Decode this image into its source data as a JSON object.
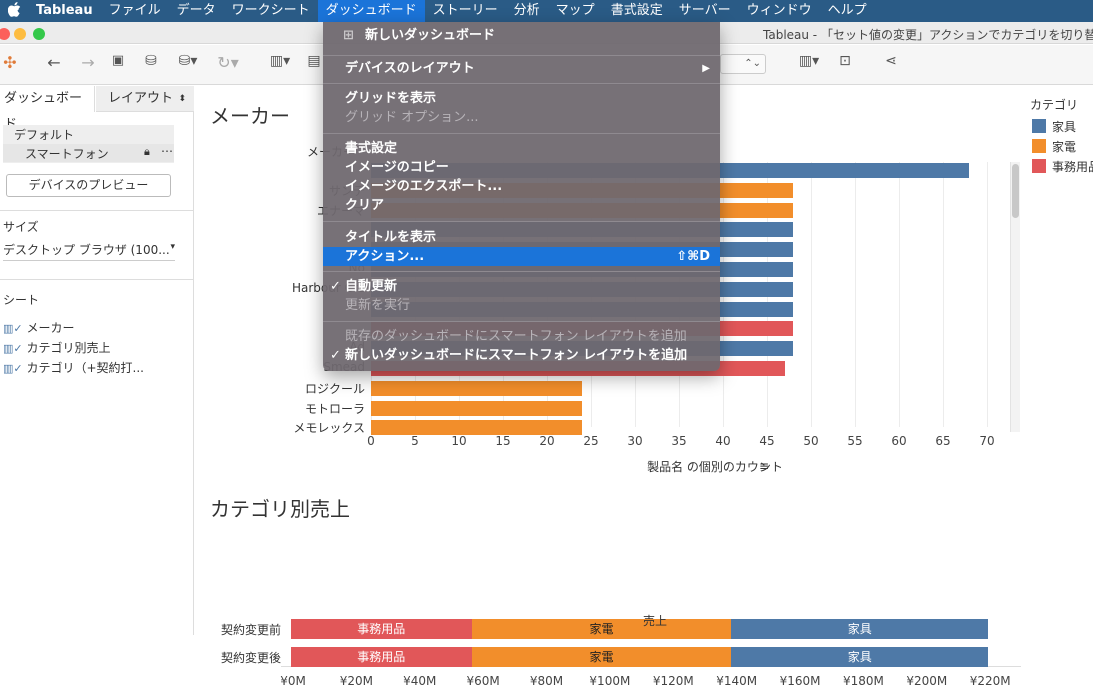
{
  "menubar": {
    "apple_icon": "apple-icon",
    "items": [
      "Tableau",
      "ファイル",
      "データ",
      "ワークシート",
      "ダッシュボード",
      "ストーリー",
      "分析",
      "マップ",
      "書式設定",
      "サーバー",
      "ウィンドウ",
      "ヘルプ"
    ]
  },
  "window": {
    "title": "Tableau - 「セット値の変更」アクションでカテゴリを切り替"
  },
  "sidebar": {
    "tabs": [
      "ダッシュボード",
      "レイアウト"
    ],
    "layout_default": "デフォルト",
    "layout_phone": "スマートフォン",
    "preview_button": "デバイスのプレビュー",
    "size_heading": "サイズ",
    "size_value": "デスクトップ ブラウザ (100...",
    "sheets_heading": "シート",
    "sheets": [
      "メーカー",
      "カテゴリ別売上",
      "カテゴリ（+契約打..."
    ]
  },
  "dropdown_menu": {
    "items": [
      {
        "label": "新しいダッシュボード",
        "disabled": false
      },
      {
        "label": "デバイスのレイアウト",
        "disabled": false,
        "submenu": true
      },
      {
        "label": "グリッドを表示",
        "disabled": false
      },
      {
        "label": "グリッド オプション...",
        "disabled": true
      },
      {
        "label": "書式設定",
        "disabled": false
      },
      {
        "label": "イメージのコピー",
        "disabled": false
      },
      {
        "label": "イメージのエクスポート...",
        "disabled": false
      },
      {
        "label": "クリア",
        "disabled": false
      },
      {
        "label": "タイトルを表示",
        "disabled": false
      },
      {
        "label": "アクション...",
        "disabled": false,
        "highlighted": true,
        "shortcut": "⇧⌘D"
      },
      {
        "label": "自動更新",
        "disabled": false,
        "checked": true
      },
      {
        "label": "更新を実行",
        "disabled": true
      },
      {
        "label": "既存のダッシュボードにスマートフォン レイアウトを追加",
        "disabled": true
      },
      {
        "label": "新しいダッシュボードにスマートフォン レイアウトを追加",
        "disabled": false,
        "checked": true
      }
    ]
  },
  "legend": {
    "title": "カテゴリ",
    "items": [
      {
        "label": "家具",
        "color": "#4e79a7"
      },
      {
        "label": "家電",
        "color": "#f28e2b"
      },
      {
        "label": "事務用品",
        "color": "#e15759"
      }
    ]
  },
  "chart_data": [
    {
      "type": "bar",
      "title": "メーカー",
      "xlabel": "製品名 の個別のカウント",
      "ylabel": "メーカー",
      "xlim": [
        0,
        70
      ],
      "x_ticks": [
        0,
        5,
        10,
        15,
        20,
        25,
        30,
        35,
        40,
        45,
        50,
        55,
        60,
        65,
        70
      ],
      "categories": [
        "",
        "サンデ",
        "エナーマ",
        "",
        "",
        "No",
        "Harbour Cre",
        "",
        "",
        "Ad",
        "Smead",
        "ロジクール",
        "モトローラ",
        "メモレックス"
      ],
      "values": [
        68,
        48,
        48,
        48,
        48,
        48,
        48,
        48,
        48,
        48,
        47,
        24,
        24,
        24
      ],
      "colors": [
        "#4e79a7",
        "#f28e2b",
        "#f28e2b",
        "#4e79a7",
        "#4e79a7",
        "#4e79a7",
        "#4e79a7",
        "#4e79a7",
        "#e15759",
        "#4e79a7",
        "#e15759",
        "#f28e2b",
        "#f28e2b",
        "#f28e2b"
      ]
    },
    {
      "type": "bar",
      "stacked": true,
      "title": "カテゴリ別売上",
      "xlabel": "売上",
      "xlim": [
        0,
        225
      ],
      "x_ticks": [
        "¥0M",
        "¥20M",
        "¥40M",
        "¥60M",
        "¥80M",
        "¥100M",
        "¥120M",
        "¥140M",
        "¥160M",
        "¥180M",
        "¥200M",
        "¥220M"
      ],
      "categories": [
        "契約変更前",
        "契約変更後"
      ],
      "series": [
        {
          "name": "事務用品",
          "values": [
            57,
            57
          ],
          "color": "#e15759"
        },
        {
          "name": "家電",
          "values": [
            82,
            82
          ],
          "color": "#f28e2b"
        },
        {
          "name": "家具",
          "values": [
            81,
            81
          ],
          "color": "#4e79a7"
        }
      ]
    }
  ]
}
